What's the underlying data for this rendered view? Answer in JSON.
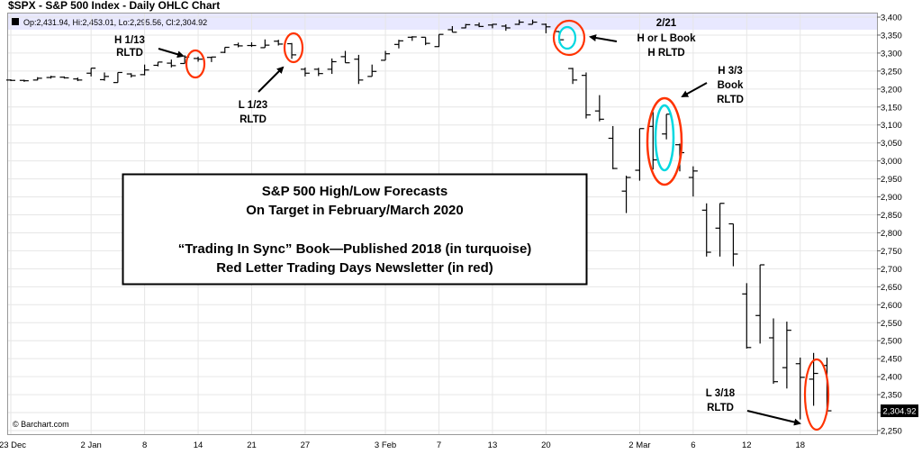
{
  "chart_data": {
    "type": "ohlc",
    "title": "$SPX - S&P 500 Index - Daily OHLC Chart",
    "info": "Op:2,431.94, Hi:2,453.01, Lo:2,295.56, Cl:2,304.92",
    "last_value": "2,304.92",
    "credit": "© Barchart.com",
    "ylim": [
      2250,
      3400
    ],
    "y_ticks": [
      2250,
      2300,
      2350,
      2400,
      2450,
      2500,
      2550,
      2600,
      2650,
      2700,
      2750,
      2800,
      2850,
      2900,
      2950,
      3000,
      3050,
      3100,
      3150,
      3200,
      3250,
      3300,
      3350,
      3400
    ],
    "y_tick_labels": [
      "2,250",
      "2,300",
      "2,350",
      "2,400",
      "2,450",
      "2,500",
      "2,550",
      "2,600",
      "2,650",
      "2,700",
      "2,750",
      "2,800",
      "2,850",
      "2,900",
      "2,950",
      "3,000",
      "3,050",
      "3,100",
      "3,150",
      "3,200",
      "3,250",
      "3,300",
      "3,350",
      "3,400"
    ],
    "x_ticks": [
      {
        "bar": 0,
        "label": "23 Dec"
      },
      {
        "bar": 6,
        "label": "2 Jan"
      },
      {
        "bar": 10,
        "label": "8"
      },
      {
        "bar": 14,
        "label": "14"
      },
      {
        "bar": 18,
        "label": "21"
      },
      {
        "bar": 22,
        "label": "27"
      },
      {
        "bar": 28,
        "label": "3 Feb"
      },
      {
        "bar": 32,
        "label": "7"
      },
      {
        "bar": 36,
        "label": "13"
      },
      {
        "bar": 40,
        "label": "20"
      },
      {
        "bar": 47,
        "label": "2 Mar"
      },
      {
        "bar": 51,
        "label": "6"
      },
      {
        "bar": 55,
        "label": "12"
      },
      {
        "bar": 59,
        "label": "18"
      }
    ],
    "bars": [
      {
        "o": 3225,
        "h": 3227,
        "l": 3222,
        "c": 3224
      },
      {
        "o": 3224,
        "h": 3226,
        "l": 3220,
        "c": 3223
      },
      {
        "o": 3225,
        "h": 3233,
        "l": 3224,
        "c": 3230
      },
      {
        "o": 3232,
        "h": 3237,
        "l": 3229,
        "c": 3234
      },
      {
        "o": 3233,
        "h": 3235,
        "l": 3229,
        "c": 3231
      },
      {
        "o": 3228,
        "h": 3232,
        "l": 3222,
        "c": 3225
      },
      {
        "o": 3244,
        "h": 3258,
        "l": 3235,
        "c": 3258
      },
      {
        "o": 3226,
        "h": 3246,
        "l": 3223,
        "c": 3235
      },
      {
        "o": 3218,
        "h": 3246,
        "l": 3218,
        "c": 3246
      },
      {
        "o": 3242,
        "h": 3244,
        "l": 3232,
        "c": 3237
      },
      {
        "o": 3240,
        "h": 3268,
        "l": 3238,
        "c": 3253
      },
      {
        "o": 3266,
        "h": 3275,
        "l": 3263,
        "c": 3275
      },
      {
        "o": 3272,
        "h": 3282,
        "l": 3260,
        "c": 3265
      },
      {
        "o": 3271,
        "h": 3294,
        "l": 3271,
        "c": 3289
      },
      {
        "o": 3285,
        "h": 3290,
        "l": 3276,
        "c": 3283
      },
      {
        "o": 3288,
        "h": 3290,
        "l": 3275,
        "c": 3289
      },
      {
        "o": 3302,
        "h": 3316,
        "l": 3300,
        "c": 3316
      },
      {
        "o": 3323,
        "h": 3329,
        "l": 3316,
        "c": 3320
      },
      {
        "o": 3321,
        "h": 3330,
        "l": 3317,
        "c": 3321
      },
      {
        "o": 3315,
        "h": 3338,
        "l": 3315,
        "c": 3322
      },
      {
        "o": 3333,
        "h": 3337,
        "l": 3321,
        "c": 3325
      },
      {
        "o": 3326,
        "h": 3328,
        "l": 3284,
        "c": 3295
      },
      {
        "o": 3255,
        "h": 3260,
        "l": 3235,
        "c": 3244
      },
      {
        "o": 3255,
        "h": 3259,
        "l": 3236,
        "c": 3243
      },
      {
        "o": 3255,
        "h": 3285,
        "l": 3242,
        "c": 3276
      },
      {
        "o": 3290,
        "h": 3306,
        "l": 3273,
        "c": 3273
      },
      {
        "o": 3283,
        "h": 3295,
        "l": 3214,
        "c": 3225
      },
      {
        "o": 3235,
        "h": 3268,
        "l": 3235,
        "c": 3249
      },
      {
        "o": 3280,
        "h": 3306,
        "l": 3280,
        "c": 3298
      },
      {
        "o": 3324,
        "h": 3337,
        "l": 3313,
        "c": 3334
      },
      {
        "o": 3344,
        "h": 3347,
        "l": 3334,
        "c": 3345
      },
      {
        "o": 3344,
        "h": 3341,
        "l": 3322,
        "c": 3327
      },
      {
        "o": 3318,
        "h": 3352,
        "l": 3317,
        "c": 3352
      },
      {
        "o": 3365,
        "h": 3375,
        "l": 3365,
        "c": 3358
      },
      {
        "o": 3370,
        "h": 3381,
        "l": 3369,
        "c": 3379
      },
      {
        "o": 3378,
        "h": 3385,
        "l": 3372,
        "c": 3374
      },
      {
        "o": 3378,
        "h": 3381,
        "l": 3369,
        "c": 3380
      },
      {
        "o": 3375,
        "h": 3380,
        "l": 3362,
        "c": 3370
      },
      {
        "o": 3380,
        "h": 3393,
        "l": 3378,
        "c": 3386
      },
      {
        "o": 3380,
        "h": 3393,
        "l": 3382,
        "c": 3386
      },
      {
        "o": 3380,
        "h": 3382,
        "l": 3355,
        "c": 3373
      },
      {
        "o": 3360,
        "h": 3360,
        "l": 3328,
        "c": 3337
      },
      {
        "o": 3257,
        "h": 3259,
        "l": 3214,
        "c": 3225
      },
      {
        "o": 3238,
        "h": 3246,
        "l": 3118,
        "c": 3128
      },
      {
        "o": 3139,
        "h": 3183,
        "l": 3110,
        "c": 3116
      },
      {
        "o": 3063,
        "h": 3097,
        "l": 2977,
        "c": 2979
      },
      {
        "o": 2916,
        "h": 2959,
        "l": 2855,
        "c": 2954
      },
      {
        "o": 2974,
        "h": 3090,
        "l": 2945,
        "c": 3090
      },
      {
        "o": 3096,
        "h": 3136,
        "l": 2976,
        "c": 3003
      },
      {
        "o": 3075,
        "h": 3130,
        "l": 3060,
        "c": 3130
      },
      {
        "o": 3045,
        "h": 3048,
        "l": 2971,
        "c": 3023
      },
      {
        "o": 2954,
        "h": 2985,
        "l": 2901,
        "c": 2972
      },
      {
        "o": 2863,
        "h": 2882,
        "l": 2734,
        "c": 2746
      },
      {
        "o": 2813,
        "h": 2882,
        "l": 2734,
        "c": 2882
      },
      {
        "o": 2825,
        "h": 2825,
        "l": 2707,
        "c": 2741
      },
      {
        "o": 2630,
        "h": 2660,
        "l": 2478,
        "c": 2481
      },
      {
        "o": 2570,
        "h": 2711,
        "l": 2492,
        "c": 2711
      },
      {
        "o": 2508,
        "h": 2562,
        "l": 2380,
        "c": 2386
      },
      {
        "o": 2425,
        "h": 2553,
        "l": 2367,
        "c": 2529
      },
      {
        "o": 2436,
        "h": 2453,
        "l": 2281,
        "c": 2398
      },
      {
        "o": 2393,
        "h": 2466,
        "l": 2319,
        "c": 2409
      },
      {
        "o": 2431,
        "h": 2453,
        "l": 2295,
        "c": 2305
      }
    ],
    "annotations": [
      {
        "lines": [
          "H 1/13",
          "RLTD"
        ]
      },
      {
        "lines": [
          "L 1/23",
          "RLTD"
        ]
      },
      {
        "lines": [
          "2/21",
          "H or L Book",
          "H RLTD"
        ]
      },
      {
        "lines": [
          "H 3/3",
          "Book",
          "RLTD"
        ]
      },
      {
        "lines": [
          "L 3/18",
          "RLTD"
        ]
      }
    ],
    "textbox_lines": [
      "S&P 500 High/Low Forecasts",
      "On Target in February/March 2020",
      "",
      "“Trading In Sync” Book—Published 2018 (in turquoise)",
      "Red Letter Trading Days Newsletter (in red)"
    ],
    "colors": {
      "bar": "#000000",
      "grid": "#e6e6e6",
      "info_band": "#e8e8ff",
      "rltd_red": "#ff3300",
      "book_turquoise": "#00d8e0",
      "last_label_bg": "#000000"
    }
  }
}
